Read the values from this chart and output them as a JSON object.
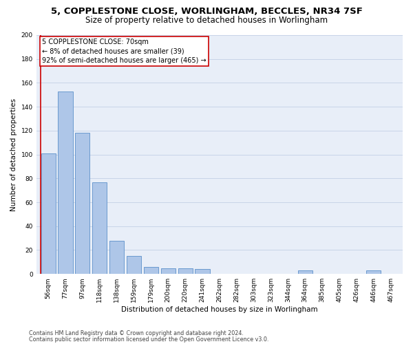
{
  "title": "5, COPPLESTONE CLOSE, WORLINGHAM, BECCLES, NR34 7SF",
  "subtitle": "Size of property relative to detached houses in Worlingham",
  "xlabel": "Distribution of detached houses by size in Worlingham",
  "ylabel": "Number of detached properties",
  "categories": [
    "56sqm",
    "77sqm",
    "97sqm",
    "118sqm",
    "138sqm",
    "159sqm",
    "179sqm",
    "200sqm",
    "220sqm",
    "241sqm",
    "262sqm",
    "282sqm",
    "303sqm",
    "323sqm",
    "344sqm",
    "364sqm",
    "385sqm",
    "405sqm",
    "426sqm",
    "446sqm",
    "467sqm"
  ],
  "values": [
    101,
    153,
    118,
    77,
    28,
    15,
    6,
    5,
    5,
    4,
    0,
    0,
    0,
    0,
    0,
    3,
    0,
    0,
    0,
    3,
    0
  ],
  "bar_color": "#aec6e8",
  "bar_edge_color": "#5b8fc9",
  "annotation_text_line1": "5 COPPLESTONE CLOSE: 70sqm",
  "annotation_text_line2": "← 8% of detached houses are smaller (39)",
  "annotation_text_line3": "92% of semi-detached houses are larger (465) →",
  "red_line_color": "#cc0000",
  "annotation_box_color": "#ffffff",
  "annotation_box_edge": "#cc0000",
  "ylim": [
    0,
    200
  ],
  "yticks": [
    0,
    20,
    40,
    60,
    80,
    100,
    120,
    140,
    160,
    180,
    200
  ],
  "grid_color": "#c8d4e8",
  "bg_color": "#e8eef8",
  "footer_line1": "Contains HM Land Registry data © Crown copyright and database right 2024.",
  "footer_line2": "Contains public sector information licensed under the Open Government Licence v3.0.",
  "title_fontsize": 9.5,
  "subtitle_fontsize": 8.5,
  "axis_label_fontsize": 7.5,
  "tick_fontsize": 6.5,
  "annotation_fontsize": 7.0
}
